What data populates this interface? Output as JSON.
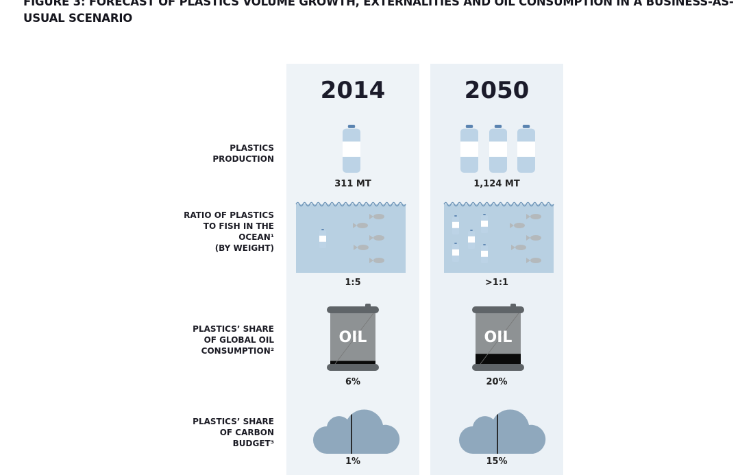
{
  "figure_title": "FIGURE 3: FORECAST OF PLASTICS VOLUME GROWTH, EXTERNALITIES AND OIL CONSUMPTION IN A BUSINESS-AS-USUAL SCENARIO",
  "rows": {
    "production": {
      "label_lines": [
        "PLASTICS",
        "PRODUCTION"
      ]
    },
    "ratio": {
      "label_lines": [
        "RATIO OF PLASTICS",
        "TO FISH IN THE",
        "OCEAN¹",
        "(BY WEIGHT)"
      ]
    },
    "oil": {
      "label_lines": [
        "PLASTICS’ SHARE",
        "OF GLOBAL OIL",
        "CONSUMPTION²"
      ]
    },
    "carbon": {
      "label_lines": [
        "PLASTICS’ SHARE",
        "OF CARBON",
        "BUDGET³"
      ]
    }
  },
  "columns": [
    {
      "year": "2014",
      "production": "311 MT",
      "bottles_shown": 1,
      "ratio": "1:5",
      "oil_share": "6%",
      "oil_share_fraction": 0.06,
      "oil_label": "OIL",
      "carbon_share": "1%",
      "carbon_share_fraction": 0.01
    },
    {
      "year": "2050",
      "production": "1,124 MT",
      "bottles_shown": 3,
      "ratio": ">1:1",
      "oil_share": "20%",
      "oil_share_fraction": 0.2,
      "oil_label": "OIL",
      "carbon_share": "15%",
      "carbon_share_fraction": 0.15
    }
  ],
  "colors": {
    "panel": "#eef3f7",
    "water": "#b8d0e2",
    "bottle": "#bcd3e6",
    "cap": "#5a83b0",
    "barrel": "#8e9294",
    "barrel_rim": "#5f6468",
    "cloud": "#8fa8bd",
    "fill_dark": "#222"
  }
}
